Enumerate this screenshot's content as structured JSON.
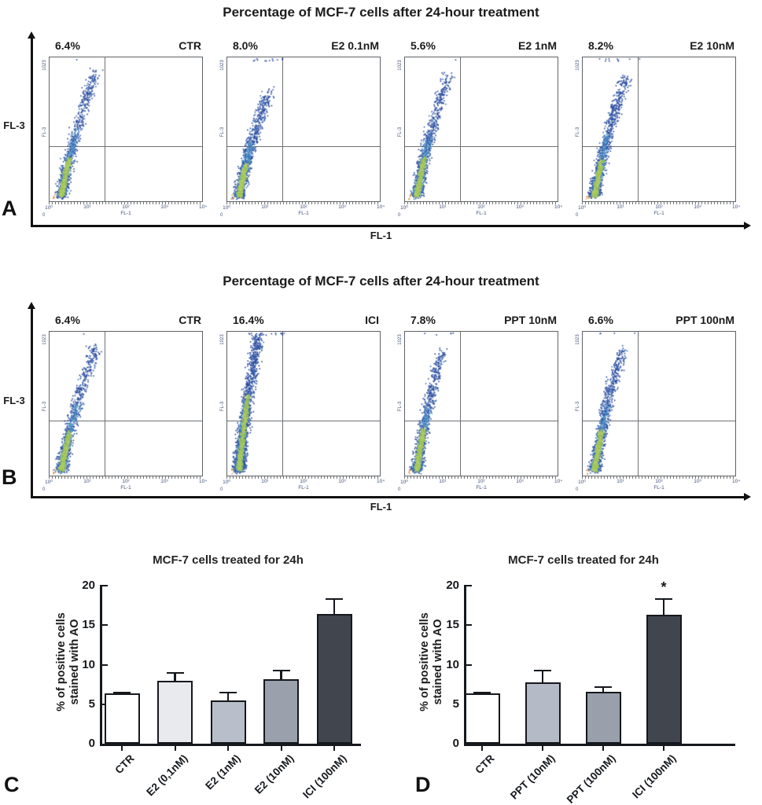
{
  "flow_axis": {
    "y_max_tick": "1023",
    "y_min_tick": "0",
    "y_name": "FL-3",
    "x_name": "FL-1",
    "x_ticks": [
      "10⁰",
      "10¹",
      "10²",
      "10³",
      "10⁴"
    ]
  },
  "colors": {
    "dot_blue": "#2b4a9d",
    "dot_blue_light": "#3f6cb5",
    "dot_teal": "#58a3cd",
    "dot_green": "#9dc452",
    "dot_green_light": "#b6d16b",
    "dot_orange": "#d8862c",
    "axis": "#111111",
    "quadrant_line": "#6e7174",
    "box_border": "#5f6266",
    "bar_dark": "#40454e"
  },
  "panelA": {
    "label": "A",
    "title": "Percentage of MCF-7 cells after 24-hour treatment",
    "axis_y": "FL-3",
    "axis_x": "FL-1",
    "plots": [
      {
        "percent": "6.4%",
        "condition": "CTR",
        "cloud": {
          "seed": 11,
          "blue": 800,
          "teal": 380,
          "green": 460,
          "tail": 0.1,
          "xreach": 0.3,
          "greenT": 0.3,
          "topEdge": 1
        }
      },
      {
        "percent": "8.0%",
        "condition": "E2 0.1nM",
        "cloud": {
          "seed": 22,
          "blue": 850,
          "teal": 400,
          "green": 480,
          "tail": 0.24,
          "xreach": 0.27,
          "greenT": 0.3,
          "topEdge": 12
        }
      },
      {
        "percent": "5.6%",
        "condition": "E2 1nM",
        "cloud": {
          "seed": 33,
          "blue": 780,
          "teal": 380,
          "green": 470,
          "tail": 0.12,
          "xreach": 0.28,
          "greenT": 0.32,
          "topEdge": 1
        }
      },
      {
        "percent": "8.2%",
        "condition": "E2 10nM",
        "cloud": {
          "seed": 44,
          "blue": 950,
          "teal": 420,
          "green": 480,
          "tail": 0.14,
          "xreach": 0.28,
          "greenT": 0.3,
          "topEdge": 10
        }
      }
    ]
  },
  "panelB": {
    "label": "B",
    "title": "Percentage of MCF-7 cells after 24-hour treatment",
    "axis_y": "FL-3",
    "axis_x": "FL-1",
    "plots": [
      {
        "percent": "6.4%",
        "condition": "CTR",
        "cloud": {
          "seed": 55,
          "blue": 800,
          "teal": 380,
          "green": 460,
          "tail": 0.1,
          "xreach": 0.3,
          "greenT": 0.3,
          "topEdge": 1
        }
      },
      {
        "percent": "16.4%",
        "condition": "ICI",
        "cloud": {
          "seed": 66,
          "blue": 1500,
          "teal": 650,
          "green": 600,
          "tail": 0.02,
          "xreach": 0.2,
          "greenT": 0.55,
          "topEdge": 16
        }
      },
      {
        "percent": "7.8%",
        "condition": "PPT 10nM",
        "cloud": {
          "seed": 77,
          "blue": 850,
          "teal": 400,
          "green": 500,
          "tail": 0.13,
          "xreach": 0.24,
          "greenT": 0.34,
          "topEdge": 5
        }
      },
      {
        "percent": "6.6%",
        "condition": "PPT 100nM",
        "cloud": {
          "seed": 88,
          "blue": 900,
          "teal": 420,
          "green": 500,
          "tail": 0.12,
          "xreach": 0.26,
          "greenT": 0.32,
          "topEdge": 4
        }
      }
    ]
  },
  "panelC": {
    "label": "C",
    "title": "MCF-7 cells treated for 24h",
    "y_label": [
      "% of positive cells",
      "stained with AO"
    ],
    "y_ticks": [
      "0",
      "5",
      "10",
      "15",
      "20"
    ],
    "y_max": 20,
    "bars": [
      {
        "label": "CTR",
        "value": 6.4,
        "err": 0.15,
        "fill": "#ffffff"
      },
      {
        "label": "E2 (0,1nM)",
        "value": 8.0,
        "err": 1.1,
        "fill": "#e8eaee"
      },
      {
        "label": "E2 (1nM)",
        "value": 5.5,
        "err": 1.1,
        "fill": "#b9bfca"
      },
      {
        "label": "E2 (10nM)",
        "value": 8.2,
        "err": 1.2,
        "fill": "#9aa1ad"
      },
      {
        "label": "ICI (100nM)",
        "value": 16.4,
        "err": 2.0,
        "fill": "#40454e"
      }
    ]
  },
  "panelD": {
    "label": "D",
    "title": "MCF-7 cells treated for 24h",
    "y_label": [
      "% of positive cells",
      "stained with AO"
    ],
    "y_ticks": [
      "0",
      "5",
      "10",
      "15",
      "20"
    ],
    "y_max": 20,
    "bars": [
      {
        "label": "CTR",
        "value": 6.4,
        "err": 0.15,
        "fill": "#ffffff"
      },
      {
        "label": "PPT (10nM)",
        "value": 7.8,
        "err": 1.6,
        "fill": "#b5bbc6"
      },
      {
        "label": "PPT (100nM)",
        "value": 6.6,
        "err": 0.7,
        "fill": "#99a0ab"
      },
      {
        "label": "ICI (100nM)",
        "value": 16.3,
        "err": 2.1,
        "fill": "#40454e",
        "sig": "*"
      }
    ]
  },
  "chart_data": [
    {
      "type": "scatter",
      "subtype": "flow-cytometry-dot-plot",
      "panel": "A",
      "title": "Percentage of MCF-7 cells after 24-hour treatment",
      "xlabel": "FL-1",
      "ylabel": "FL-3",
      "x_scale": "log, 10^0 to 10^4",
      "y_range": [
        0,
        1023
      ],
      "categories": [
        "CTR",
        "E2 0.1nM",
        "E2 1nM",
        "E2 10nM"
      ],
      "values": [
        6.4,
        8.0,
        5.6,
        8.2
      ],
      "values_meaning": "percent positive cells shown in upper-left quadrant label"
    },
    {
      "type": "scatter",
      "subtype": "flow-cytometry-dot-plot",
      "panel": "B",
      "title": "Percentage of MCF-7 cells after 24-hour treatment",
      "xlabel": "FL-1",
      "ylabel": "FL-3",
      "x_scale": "log, 10^0 to 10^4",
      "y_range": [
        0,
        1023
      ],
      "categories": [
        "CTR",
        "ICI",
        "PPT 10nM",
        "PPT 100nM"
      ],
      "values": [
        6.4,
        16.4,
        7.8,
        6.6
      ],
      "values_meaning": "percent positive cells shown in upper-left quadrant label"
    },
    {
      "type": "bar",
      "panel": "C",
      "title": "MCF-7 cells treated for 24h",
      "xlabel": "",
      "ylabel": "% of positive cells stained with AO",
      "ylim": [
        0,
        20
      ],
      "grid": false,
      "categories": [
        "CTR",
        "E2 (0,1nM)",
        "E2 (1nM)",
        "E2 (10nM)",
        "ICI (100nM)"
      ],
      "values": [
        6.4,
        8.0,
        5.5,
        8.2,
        16.4
      ],
      "errors_upper": [
        0.15,
        1.1,
        1.1,
        1.2,
        2.0
      ]
    },
    {
      "type": "bar",
      "panel": "D",
      "title": "MCF-7 cells treated for 24h",
      "xlabel": "",
      "ylabel": "% of positive cells stained with AO",
      "ylim": [
        0,
        20
      ],
      "grid": false,
      "categories": [
        "CTR",
        "PPT (10nM)",
        "PPT (100nM)",
        "ICI (100nM)"
      ],
      "values": [
        6.4,
        7.8,
        6.6,
        16.3
      ],
      "errors_upper": [
        0.15,
        1.6,
        0.7,
        2.1
      ],
      "significance": [
        "",
        "",
        "",
        "*"
      ]
    }
  ]
}
